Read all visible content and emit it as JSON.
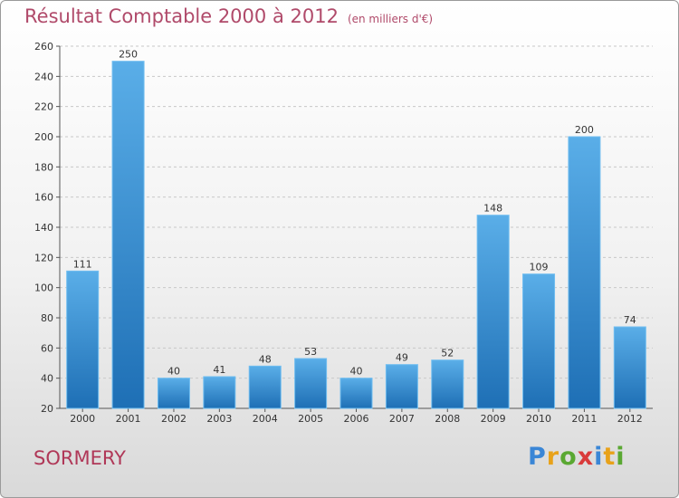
{
  "title": "Résultat Comptable 2000 à 2012",
  "subtitle": "(en milliers d'€)",
  "town": "SORMERY",
  "logo": {
    "text": "Proxiti",
    "colors": [
      "#3a86d6",
      "#e8a21a",
      "#5aa832",
      "#d93a3a",
      "#3a86d6",
      "#e8a21a",
      "#5aa832"
    ]
  },
  "colors": {
    "bar_top": "#5aaee8",
    "bar_bottom": "#1e6fb5",
    "title": "#b04a6a",
    "town": "#b03858"
  },
  "chart_data": {
    "type": "bar",
    "categories": [
      "2000",
      "2001",
      "2002",
      "2003",
      "2004",
      "2005",
      "2006",
      "2007",
      "2008",
      "2009",
      "2010",
      "2011",
      "2012"
    ],
    "values": [
      111,
      250,
      40,
      41,
      48,
      53,
      40,
      49,
      52,
      148,
      109,
      200,
      74
    ],
    "ylim": [
      20,
      260
    ],
    "yticks": [
      20,
      40,
      60,
      80,
      100,
      120,
      140,
      160,
      180,
      200,
      220,
      240,
      260
    ],
    "grid": true,
    "data_labels": true
  }
}
